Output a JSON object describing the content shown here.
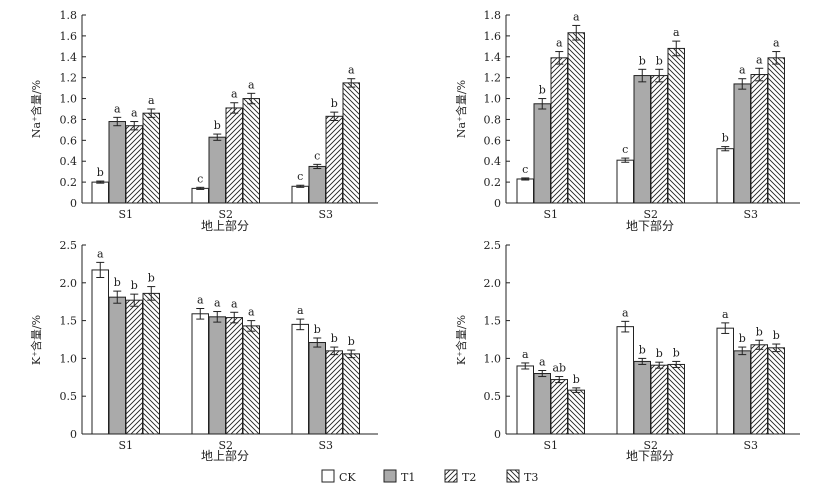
{
  "legend": [
    {
      "key": "CK",
      "label": "CK",
      "fill": "white"
    },
    {
      "key": "T1",
      "label": "T1",
      "fill": "gray"
    },
    {
      "key": "T2",
      "label": "T2",
      "fill": "hatch_fwd"
    },
    {
      "key": "T3",
      "label": "T3",
      "fill": "hatch_back"
    }
  ],
  "colors": {
    "gray_fill": "#aaaaaa",
    "ink": "#222222"
  },
  "chart_data": [
    {
      "type": "bar",
      "panel": "top-left",
      "categories": [
        "S1",
        "S2",
        "S3"
      ],
      "series_keys": [
        "CK",
        "T1",
        "T2",
        "T3"
      ],
      "series": [
        {
          "values": [
            0.2,
            0.14,
            0.16
          ],
          "errors": [
            0.01,
            0.01,
            0.01
          ],
          "letters": [
            "b",
            "c",
            "c"
          ]
        },
        {
          "values": [
            0.78,
            0.63,
            0.35
          ],
          "errors": [
            0.04,
            0.03,
            0.02
          ],
          "letters": [
            "a",
            "b",
            "c"
          ]
        },
        {
          "values": [
            0.74,
            0.91,
            0.83
          ],
          "errors": [
            0.04,
            0.05,
            0.04
          ],
          "letters": [
            "a",
            "a",
            "b"
          ]
        },
        {
          "values": [
            0.86,
            1.0,
            1.15
          ],
          "errors": [
            0.04,
            0.05,
            0.04
          ],
          "letters": [
            "a",
            "a",
            "a"
          ]
        }
      ],
      "ylim": [
        0,
        1.8
      ],
      "yticks": [
        "0",
        "0.2",
        "0.4",
        "0.6",
        "0.8",
        "1.0",
        "1.2",
        "1.4",
        "1.6",
        "1.8"
      ],
      "ylabel": "Na⁺含量/%",
      "xlabel": "地上部分"
    },
    {
      "type": "bar",
      "panel": "top-right",
      "categories": [
        "S1",
        "S2",
        "S3"
      ],
      "series_keys": [
        "CK",
        "T1",
        "T2",
        "T3"
      ],
      "series": [
        {
          "values": [
            0.23,
            0.41,
            0.52
          ],
          "errors": [
            0.01,
            0.02,
            0.02
          ],
          "letters": [
            "c",
            "c",
            "b"
          ]
        },
        {
          "values": [
            0.95,
            1.22,
            1.14
          ],
          "errors": [
            0.05,
            0.06,
            0.05
          ],
          "letters": [
            "b",
            "b",
            "a"
          ]
        },
        {
          "values": [
            1.39,
            1.22,
            1.23
          ],
          "errors": [
            0.06,
            0.06,
            0.06
          ],
          "letters": [
            "a",
            "b",
            "a"
          ]
        },
        {
          "values": [
            1.63,
            1.48,
            1.39
          ],
          "errors": [
            0.07,
            0.07,
            0.06
          ],
          "letters": [
            "a",
            "a",
            "a"
          ]
        }
      ],
      "ylim": [
        0,
        1.8
      ],
      "yticks": [
        "0",
        "0.2",
        "0.4",
        "0.6",
        "0.8",
        "1.0",
        "1.2",
        "1.4",
        "1.6",
        "1.8"
      ],
      "ylabel": "Na⁺含量/%",
      "xlabel": "地下部分"
    },
    {
      "type": "bar",
      "panel": "bottom-left",
      "categories": [
        "S1",
        "S2",
        "S3"
      ],
      "series_keys": [
        "CK",
        "T1",
        "T2",
        "T3"
      ],
      "series": [
        {
          "values": [
            2.17,
            1.59,
            1.45
          ],
          "errors": [
            0.1,
            0.07,
            0.07
          ],
          "letters": [
            "a",
            "a",
            "a"
          ]
        },
        {
          "values": [
            1.81,
            1.55,
            1.21
          ],
          "errors": [
            0.08,
            0.07,
            0.06
          ],
          "letters": [
            "b",
            "a",
            "b"
          ]
        },
        {
          "values": [
            1.77,
            1.54,
            1.1
          ],
          "errors": [
            0.08,
            0.07,
            0.05
          ],
          "letters": [
            "b",
            "a",
            "b"
          ]
        },
        {
          "values": [
            1.86,
            1.43,
            1.06
          ],
          "errors": [
            0.09,
            0.07,
            0.05
          ],
          "letters": [
            "b",
            "a",
            "b"
          ]
        }
      ],
      "ylim": [
        0,
        2.5
      ],
      "yticks": [
        "0",
        "0.5",
        "1.0",
        "1.5",
        "2.0",
        "2.5"
      ],
      "ylabel": "K⁺含量/%",
      "xlabel": "地上部分"
    },
    {
      "type": "bar",
      "panel": "bottom-right",
      "categories": [
        "S1",
        "S2",
        "S3"
      ],
      "series_keys": [
        "CK",
        "T1",
        "T2",
        "T3"
      ],
      "series": [
        {
          "values": [
            0.9,
            1.42,
            1.4
          ],
          "errors": [
            0.04,
            0.07,
            0.07
          ],
          "letters": [
            "a",
            "a",
            "a"
          ]
        },
        {
          "values": [
            0.8,
            0.96,
            1.1
          ],
          "errors": [
            0.04,
            0.04,
            0.05
          ],
          "letters": [
            "a",
            "b",
            "b"
          ]
        },
        {
          "values": [
            0.72,
            0.91,
            1.18
          ],
          "errors": [
            0.04,
            0.04,
            0.06
          ],
          "letters": [
            "ab",
            "b",
            "b"
          ]
        },
        {
          "values": [
            0.58,
            0.92,
            1.14
          ],
          "errors": [
            0.03,
            0.04,
            0.05
          ],
          "letters": [
            "b",
            "b",
            "b"
          ]
        }
      ],
      "ylim": [
        0,
        2.5
      ],
      "yticks": [
        "0",
        "0.5",
        "1.0",
        "1.5",
        "2.0",
        "2.5"
      ],
      "ylabel": "K⁺含量/%",
      "xlabel": "地下部分"
    }
  ]
}
